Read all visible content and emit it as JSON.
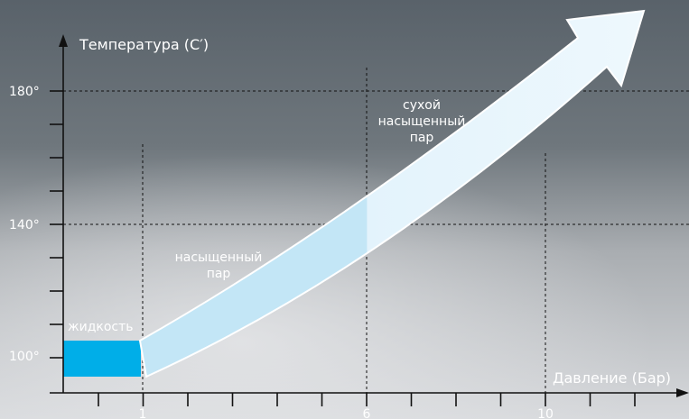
{
  "axes": {
    "y_label": "Температура (C′)",
    "x_label": "Давление (Бар)",
    "y_ticks": [
      "180°",
      "140°",
      "100°"
    ],
    "x_ticks": [
      "1",
      "6",
      "10"
    ]
  },
  "regions": {
    "liquid": [
      "жидкость"
    ],
    "saturated": [
      "насыщенный",
      "пар"
    ],
    "dry_saturated": [
      "сухой",
      "насыщенный",
      "пар"
    ]
  }
}
